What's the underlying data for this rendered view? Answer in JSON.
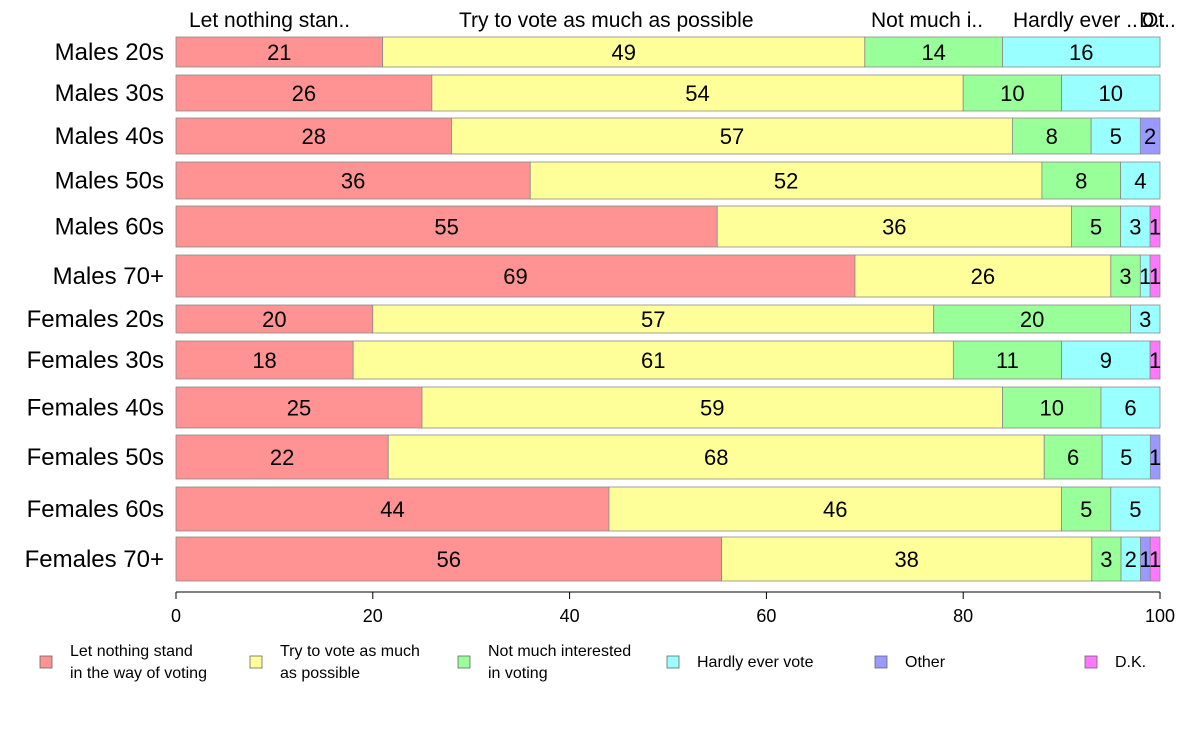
{
  "chart_data": {
    "type": "bar",
    "orientation": "horizontal",
    "stacked": true,
    "categories": [
      "Males 20s",
      "Males 30s",
      "Males 40s",
      "Males 50s",
      "Males 60s",
      "Males 70+",
      "Females 20s",
      "Females 30s",
      "Females 40s",
      "Females 50s",
      "Females 60s",
      "Females 70+"
    ],
    "series": [
      {
        "name": "Let nothing stand in the way of voting",
        "color": "#ff9393",
        "values": [
          21,
          26,
          28,
          36,
          55,
          69,
          20,
          18,
          25,
          22,
          44,
          56
        ]
      },
      {
        "name": "Try to vote as much as possible",
        "color": "#ffff99",
        "values": [
          49,
          54,
          57,
          52,
          36,
          26,
          57,
          61,
          59,
          68,
          46,
          38
        ]
      },
      {
        "name": "Not much interested in voting",
        "color": "#99ff99",
        "values": [
          14,
          10,
          8,
          8,
          5,
          3,
          20,
          11,
          10,
          6,
          5,
          3
        ]
      },
      {
        "name": "Hardly ever vote",
        "color": "#99ffff",
        "values": [
          16,
          10,
          5,
          4,
          3,
          1,
          3,
          9,
          6,
          5,
          5,
          2
        ]
      },
      {
        "name": "Other",
        "color": "#9999ff",
        "values": [
          0,
          0,
          2,
          0,
          0,
          0,
          0,
          0,
          0,
          1,
          0,
          1
        ]
      },
      {
        "name": "D.K.",
        "color": "#ff77ff",
        "values": [
          0,
          0,
          0,
          0,
          1,
          1,
          0,
          1,
          0,
          0,
          0,
          1
        ]
      }
    ],
    "top_labels": [
      "Let nothing stan..",
      "Try to vote as much as possible",
      "Not much i..",
      "Hardly ever ..",
      "Ot..",
      "D.."
    ],
    "legend_labels": [
      [
        "Let nothing stand",
        "in the way of voting"
      ],
      [
        "Try to vote as much",
        "as possible"
      ],
      [
        "Not much interested",
        "in voting"
      ],
      [
        "Hardly ever vote"
      ],
      [
        "Other"
      ],
      [
        "D.K."
      ]
    ],
    "xlim": [
      0,
      100
    ],
    "xticks": [
      0,
      20,
      40,
      60,
      80,
      100
    ],
    "grid": false,
    "legend_position": "bottom"
  }
}
